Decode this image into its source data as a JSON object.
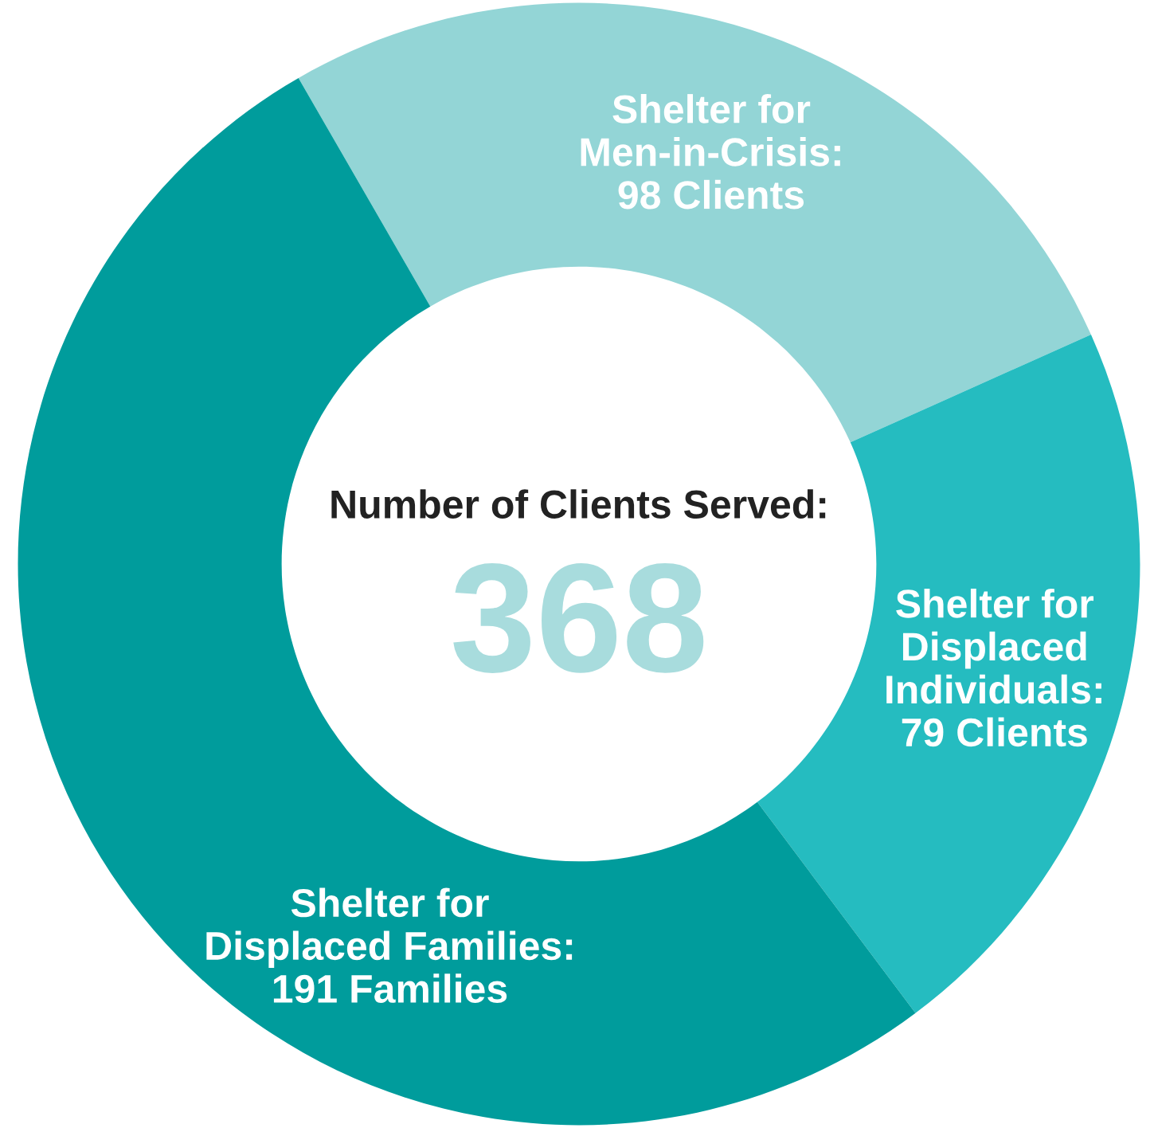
{
  "chart_data": {
    "type": "donut",
    "categories": [
      "Shelter for\nMen-in-Crisis:\n98 Clients",
      "Shelter for\nDisplaced\nIndividuals:\n79 Clients",
      "Shelter for\nDisplaced Families:\n191 Families"
    ],
    "values": [
      98,
      79,
      191
    ],
    "colors": [
      "#93d5d6",
      "#25bcc0",
      "#009c9c"
    ],
    "annotations": [
      "Number of Clients Served:",
      "368"
    ],
    "legend": false
  }
}
